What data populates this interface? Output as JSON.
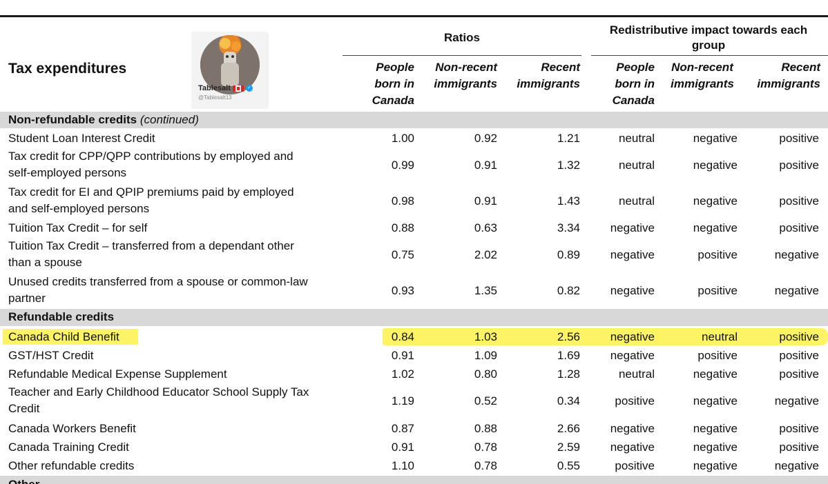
{
  "header": {
    "title": "Tax expenditures",
    "ratios_label": "Ratios",
    "redistributive_label_1": "Redistributive impact towards each",
    "redistributive_label_2": "group",
    "columns": {
      "ratio_canada": [
        "People",
        "born in",
        "Canada"
      ],
      "ratio_nonrecent": [
        "Non-recent",
        "immigrants"
      ],
      "ratio_recent": [
        "Recent",
        "immigrants"
      ],
      "impact_canada": [
        "People",
        "born in",
        "Canada"
      ],
      "impact_nonrecent": [
        "Non-recent",
        "immigrants"
      ],
      "impact_recent": [
        "Recent",
        "immigrants"
      ]
    }
  },
  "watermark": {
    "name": "Tablesalt",
    "handle": "@Tablesalt13",
    "flag_icon": "canada-flag-icon",
    "verified_icon": "verified-badge-icon"
  },
  "sections": [
    {
      "title": "Non-refundable credits",
      "note": "(continued)"
    },
    {
      "title": "Refundable credits",
      "note": ""
    },
    {
      "title": "Other",
      "note": ""
    }
  ],
  "rows": [
    {
      "label1": "Student Loan Interest Credit",
      "label2": "",
      "r1": "1.00",
      "r2": "0.92",
      "r3": "1.21",
      "i1": "neutral",
      "i2": "negative",
      "i3": "positive"
    },
    {
      "label1": "Tax credit for CPP/QPP contributions by employed and",
      "label2": "self-employed persons",
      "r1": "0.99",
      "r2": "0.91",
      "r3": "1.32",
      "i1": "neutral",
      "i2": "negative",
      "i3": "positive"
    },
    {
      "label1": "Tax credit for EI and QPIP premiums paid by employed",
      "label2": "and self-employed persons",
      "r1": "0.98",
      "r2": "0.91",
      "r3": "1.43",
      "i1": "neutral",
      "i2": "negative",
      "i3": "positive"
    },
    {
      "label1": "Tuition Tax Credit – for self",
      "label2": "",
      "r1": "0.88",
      "r2": "0.63",
      "r3": "3.34",
      "i1": "negative",
      "i2": "negative",
      "i3": "positive"
    },
    {
      "label1": "Tuition Tax Credit – transferred from a dependant other",
      "label2": "than a spouse",
      "r1": "0.75",
      "r2": "2.02",
      "r3": "0.89",
      "i1": "negative",
      "i2": "positive",
      "i3": "negative"
    },
    {
      "label1": "Unused credits transferred from a spouse or common-law",
      "label2": "partner",
      "r1": "0.93",
      "r2": "1.35",
      "r3": "0.82",
      "i1": "negative",
      "i2": "positive",
      "i3": "negative"
    },
    {
      "label1": "Canada Child Benefit",
      "label2": "",
      "r1": "0.84",
      "r2": "1.03",
      "r3": "2.56",
      "i1": "negative",
      "i2": "neutral",
      "i3": "positive",
      "highlighted": true
    },
    {
      "label1": "GST/HST Credit",
      "label2": "",
      "r1": "0.91",
      "r2": "1.09",
      "r3": "1.69",
      "i1": "negative",
      "i2": "positive",
      "i3": "positive"
    },
    {
      "label1": "Refundable Medical Expense Supplement",
      "label2": "",
      "r1": "1.02",
      "r2": "0.80",
      "r3": "1.28",
      "i1": "neutral",
      "i2": "negative",
      "i3": "positive"
    },
    {
      "label1": "Teacher and Early Childhood Educator School Supply Tax",
      "label2": "Credit",
      "r1": "1.19",
      "r2": "0.52",
      "r3": "0.34",
      "i1": "positive",
      "i2": "negative",
      "i3": "negative"
    },
    {
      "label1": "Canada Workers Benefit",
      "label2": "",
      "r1": "0.87",
      "r2": "0.88",
      "r3": "2.66",
      "i1": "negative",
      "i2": "negative",
      "i3": "positive"
    },
    {
      "label1": "Canada Training Credit",
      "label2": "",
      "r1": "0.91",
      "r2": "0.78",
      "r3": "2.59",
      "i1": "negative",
      "i2": "negative",
      "i3": "positive"
    },
    {
      "label1": "Other refundable credits",
      "label2": "",
      "r1": "1.10",
      "r2": "0.78",
      "r3": "0.55",
      "i1": "positive",
      "i2": "negative",
      "i3": "negative"
    }
  ],
  "colors": {
    "section_bg": "#d8d8d8",
    "highlight": "#fbf24a"
  }
}
